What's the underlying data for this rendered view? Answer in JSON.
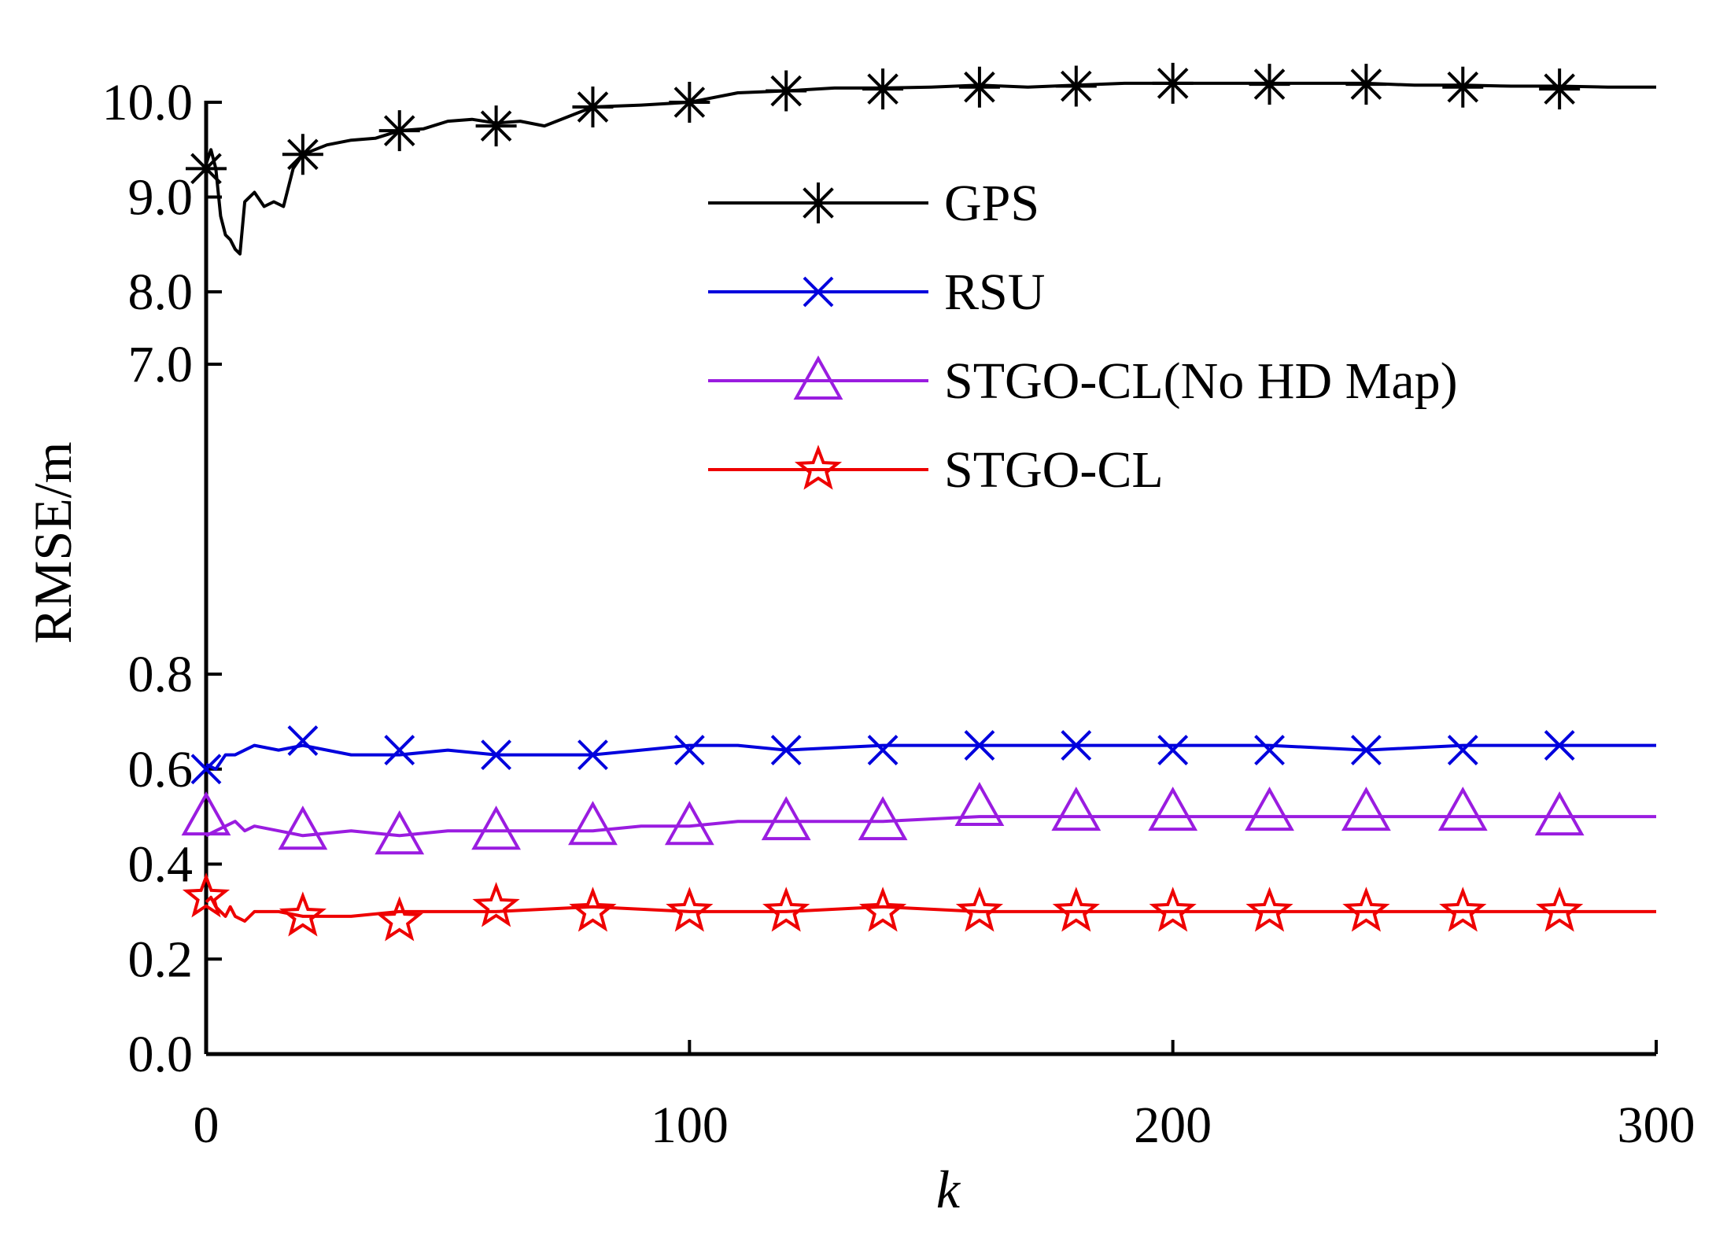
{
  "chart_data": {
    "type": "line",
    "xlabel": "k",
    "ylabel": "RMSE/m",
    "xlim": [
      0,
      300
    ],
    "x_ticks": [
      "0",
      "100",
      "200",
      "300"
    ],
    "y_axis_break": {
      "lower_range": [
        0,
        0.8
      ],
      "upper_range": [
        7.0,
        10.0
      ]
    },
    "y_ticks": [
      "0.0",
      "0.2",
      "0.4",
      "0.6",
      "0.8",
      "7.0",
      "8.0",
      "9.0",
      "10.0"
    ],
    "legend_position": "top-center",
    "series": [
      {
        "name": "GPS",
        "color": "#000000",
        "marker": "asterisk",
        "x": [
          0,
          1,
          2,
          3,
          4,
          5,
          6,
          7,
          8,
          10,
          12,
          14,
          16,
          18,
          20,
          25,
          30,
          35,
          40,
          45,
          50,
          55,
          60,
          65,
          70,
          80,
          90,
          100,
          110,
          120,
          130,
          140,
          150,
          160,
          170,
          180,
          190,
          200,
          210,
          220,
          230,
          240,
          250,
          260,
          270,
          280,
          290,
          300
        ],
        "values": [
          9.35,
          9.5,
          9.3,
          8.8,
          8.6,
          8.55,
          8.45,
          8.4,
          8.95,
          9.05,
          8.9,
          8.95,
          8.9,
          9.3,
          9.45,
          9.55,
          9.6,
          9.62,
          9.7,
          9.72,
          9.8,
          9.82,
          9.78,
          9.8,
          9.75,
          9.95,
          9.97,
          10.0,
          10.1,
          10.12,
          10.15,
          10.15,
          10.16,
          10.18,
          10.16,
          10.18,
          10.2,
          10.2,
          10.2,
          10.2,
          10.2,
          10.2,
          10.18,
          10.18,
          10.17,
          10.17,
          10.16,
          10.16
        ],
        "marker_x": [
          0,
          20,
          40,
          60,
          80,
          100,
          120,
          140,
          160,
          180,
          200,
          220,
          240,
          260,
          280
        ],
        "marker_values": [
          9.3,
          9.45,
          9.7,
          9.75,
          9.95,
          10.0,
          10.12,
          10.14,
          10.16,
          10.17,
          10.2,
          10.19,
          10.19,
          10.16,
          10.14
        ]
      },
      {
        "name": "RSU",
        "color": "#0000dd",
        "marker": "x",
        "x": [
          0,
          2,
          4,
          6,
          8,
          10,
          15,
          20,
          30,
          40,
          50,
          60,
          70,
          80,
          90,
          100,
          110,
          120,
          140,
          160,
          180,
          200,
          220,
          240,
          260,
          280,
          300
        ],
        "values": [
          0.61,
          0.6,
          0.63,
          0.63,
          0.64,
          0.65,
          0.64,
          0.65,
          0.63,
          0.63,
          0.64,
          0.63,
          0.63,
          0.63,
          0.64,
          0.65,
          0.65,
          0.64,
          0.65,
          0.65,
          0.65,
          0.65,
          0.65,
          0.64,
          0.65,
          0.65,
          0.65
        ],
        "marker_x": [
          0,
          20,
          40,
          60,
          80,
          100,
          120,
          140,
          160,
          180,
          200,
          220,
          240,
          260,
          280
        ],
        "marker_values": [
          0.6,
          0.66,
          0.64,
          0.63,
          0.63,
          0.64,
          0.64,
          0.64,
          0.65,
          0.65,
          0.64,
          0.64,
          0.64,
          0.64,
          0.65
        ]
      },
      {
        "name": "STGO-CL(No HD Map)",
        "color": "#9a1ce0",
        "marker": "triangle",
        "x": [
          0,
          2,
          4,
          6,
          8,
          10,
          15,
          20,
          30,
          40,
          50,
          60,
          70,
          80,
          90,
          100,
          110,
          120,
          140,
          160,
          180,
          200,
          220,
          240,
          260,
          280,
          300
        ],
        "values": [
          0.46,
          0.47,
          0.48,
          0.49,
          0.47,
          0.48,
          0.47,
          0.46,
          0.47,
          0.46,
          0.47,
          0.47,
          0.47,
          0.47,
          0.48,
          0.48,
          0.49,
          0.49,
          0.49,
          0.5,
          0.5,
          0.5,
          0.5,
          0.5,
          0.5,
          0.5,
          0.5
        ],
        "marker_x": [
          0,
          20,
          40,
          60,
          80,
          100,
          120,
          140,
          160,
          180,
          200,
          220,
          240,
          260,
          280
        ],
        "marker_values": [
          0.5,
          0.47,
          0.46,
          0.47,
          0.48,
          0.48,
          0.49,
          0.49,
          0.52,
          0.51,
          0.51,
          0.51,
          0.51,
          0.51,
          0.5
        ]
      },
      {
        "name": "STGO-CL",
        "color": "#ee0000",
        "marker": "star",
        "x": [
          0,
          1,
          2,
          3,
          4,
          5,
          6,
          8,
          10,
          15,
          20,
          30,
          40,
          50,
          60,
          80,
          100,
          120,
          140,
          160,
          180,
          200,
          220,
          240,
          260,
          280,
          300
        ],
        "values": [
          0.32,
          0.33,
          0.31,
          0.3,
          0.29,
          0.31,
          0.29,
          0.28,
          0.3,
          0.3,
          0.29,
          0.29,
          0.3,
          0.3,
          0.3,
          0.31,
          0.3,
          0.3,
          0.31,
          0.3,
          0.3,
          0.3,
          0.3,
          0.3,
          0.3,
          0.3,
          0.3
        ],
        "marker_x": [
          0,
          20,
          40,
          60,
          80,
          100,
          120,
          140,
          160,
          180,
          200,
          220,
          240,
          260,
          280
        ],
        "marker_values": [
          0.33,
          0.29,
          0.28,
          0.31,
          0.3,
          0.3,
          0.3,
          0.3,
          0.3,
          0.3,
          0.3,
          0.3,
          0.3,
          0.3,
          0.3
        ]
      }
    ]
  }
}
